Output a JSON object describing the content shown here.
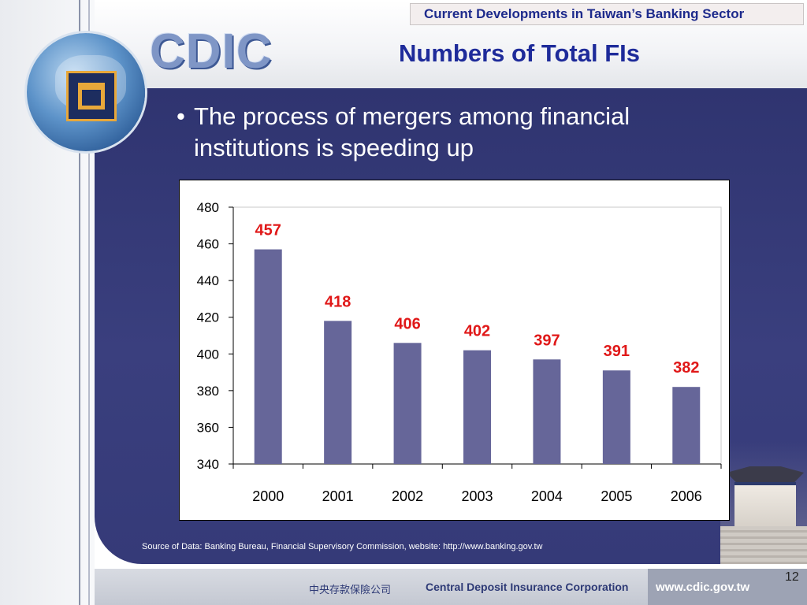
{
  "header": {
    "section_title": "Current Developments in Taiwan’s Banking Sector",
    "slide_title": "Numbers of Total FIs",
    "logo_text": "CDIC"
  },
  "body": {
    "bullet_mark": "•",
    "bullet_text": "The process of mergers among financial institutions is speeding up",
    "source": "Source of Data: Banking Bureau, Financial Supervisory Commission, website: http://www.banking.gov.tw"
  },
  "footer": {
    "org_chinese": "中央存款保險公司",
    "org_english": "Central Deposit Insurance Corporation",
    "website": "www.cdic.gov.tw",
    "page_number": "12"
  },
  "colors": {
    "bar": "#666699",
    "data_label": "#e01818",
    "panel": "#353a78"
  },
  "chart_data": {
    "type": "bar",
    "categories": [
      "2000",
      "2001",
      "2002",
      "2003",
      "2004",
      "2005",
      "2006"
    ],
    "values": [
      457,
      418,
      406,
      402,
      397,
      391,
      382
    ],
    "data_labels": [
      "457",
      "418",
      "406",
      "402",
      "397",
      "391",
      "382"
    ],
    "title": "",
    "xlabel": "",
    "ylabel": "",
    "ylim": [
      340,
      480
    ],
    "yticks": [
      "340",
      "360",
      "380",
      "400",
      "420",
      "440",
      "460",
      "480"
    ],
    "grid": false,
    "legend": "none"
  }
}
